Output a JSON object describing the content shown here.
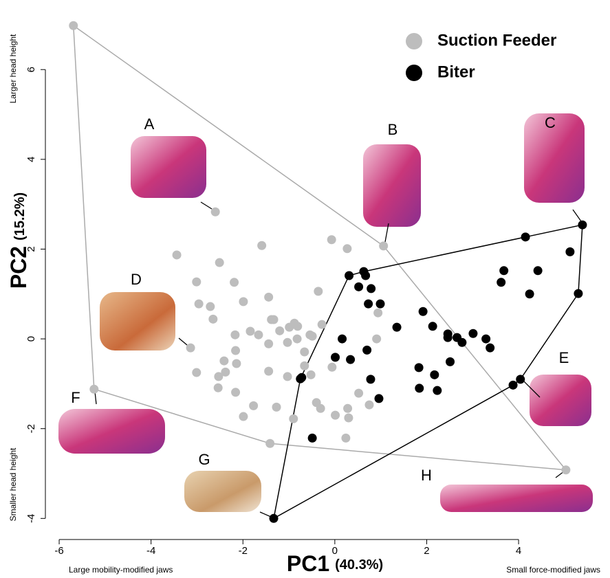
{
  "chart_data": {
    "type": "scatter",
    "x_label": {
      "main": "PC1",
      "detail": "(40.3%)"
    },
    "y_label": {
      "main": "PC2",
      "detail": "(15.2%)"
    },
    "corner_labels": {
      "top_left": "Larger head height",
      "bottom_left": "Smaller head height",
      "bottom_start": "Large mobility-modified jaws",
      "bottom_end": "Small force-modified jaws"
    },
    "annotations": [
      "A",
      "B",
      "C",
      "D",
      "E",
      "F",
      "G",
      "H"
    ],
    "xlim": [
      -6.3,
      5.93
    ],
    "ylim": [
      -4.47,
      7.55
    ],
    "xticks": [
      -6,
      -4,
      -2,
      0,
      2,
      4
    ],
    "yticks": [
      -4,
      -2,
      0,
      2,
      4,
      6
    ],
    "convex_hull": true,
    "legend": "top-right",
    "series": [
      {
        "name": "Suction Feeder",
        "color": "#bdbdbd",
        "x": [
          -5.69,
          -2.6,
          1.06,
          -5.24,
          -1.41,
          5.03,
          -3.14,
          -3.44,
          -2.51,
          -1.59,
          -0.07,
          0.27,
          -3.01,
          -2.19,
          -2.96,
          -2.71,
          -2.65,
          -1.99,
          -1.44,
          -0.36,
          0.94,
          0.91,
          -1.84,
          -2.17,
          -1.66,
          -1.38,
          -1.33,
          -1.2,
          -0.99,
          -0.88,
          -0.81,
          -0.28,
          -0.54,
          -0.49,
          -1.44,
          -1.03,
          -0.82,
          -0.66,
          -2.16,
          -2.41,
          -2.14,
          -3.01,
          -2.53,
          -2.38,
          -2.54,
          -1.44,
          -1.03,
          -0.52,
          -0.66,
          -0.06,
          -2.16,
          -1.27,
          -0.4,
          -0.31,
          -0.9,
          -1.77,
          -1.99,
          0.01,
          0.28,
          0.3,
          0.52,
          0.24,
          0.75
        ],
        "values": [
          6.98,
          2.83,
          2.07,
          -1.12,
          -2.33,
          -2.92,
          -0.2,
          1.87,
          1.7,
          2.08,
          2.21,
          2.01,
          1.27,
          1.26,
          0.78,
          0.72,
          0.44,
          0.83,
          0.93,
          1.06,
          0.58,
          0.0,
          0.17,
          0.09,
          0.09,
          0.43,
          0.43,
          0.18,
          0.26,
          0.35,
          0.28,
          0.32,
          0.09,
          0.06,
          -0.11,
          -0.08,
          0.0,
          -0.29,
          -0.26,
          -0.49,
          -0.55,
          -0.75,
          -0.84,
          -0.74,
          -1.09,
          -0.72,
          -0.84,
          -0.8,
          -0.6,
          -0.63,
          -1.19,
          -1.52,
          -1.42,
          -1.55,
          -1.78,
          -1.49,
          -1.73,
          -1.7,
          -1.55,
          -1.76,
          -1.21,
          -2.21,
          -1.47
        ]
      },
      {
        "name": "Biter",
        "color": "#000000",
        "x": [
          -1.33,
          -0.75,
          -0.72,
          -0.49,
          0.31,
          0.63,
          0.67,
          0.52,
          0.79,
          0.73,
          0.99,
          0.16,
          0.01,
          0.34,
          0.7,
          0.78,
          1.35,
          0.96,
          1.92,
          2.13,
          1.83,
          1.84,
          2.17,
          2.23,
          2.46,
          2.46,
          2.66,
          2.77,
          2.51,
          3.01,
          3.29,
          3.38,
          3.68,
          3.62,
          4.15,
          4.42,
          4.24,
          5.12,
          5.39,
          5.3,
          4.04,
          3.88
        ],
        "values": [
          -4.0,
          -0.89,
          -0.86,
          -2.21,
          1.41,
          1.5,
          1.41,
          1.16,
          1.12,
          0.78,
          0.78,
          0.0,
          -0.41,
          -0.46,
          -0.25,
          -0.9,
          0.26,
          -1.33,
          0.61,
          0.28,
          -0.64,
          -1.1,
          -0.8,
          -1.15,
          0.11,
          0.03,
          0.03,
          -0.08,
          -0.51,
          0.12,
          0.0,
          -0.2,
          1.52,
          1.26,
          2.27,
          1.52,
          1.0,
          1.94,
          2.54,
          1.01,
          -0.9,
          -1.03
        ]
      }
    ]
  }
}
